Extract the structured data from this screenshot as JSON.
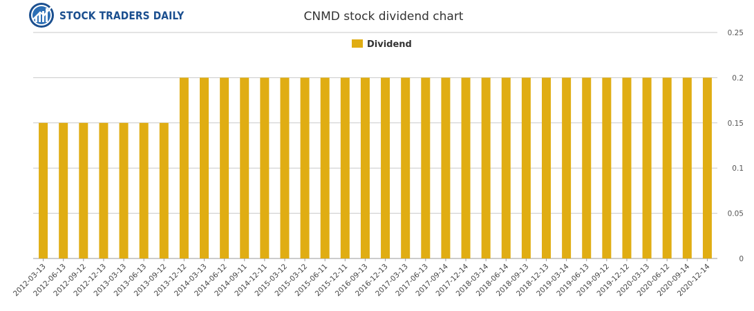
{
  "brand": {
    "name": "STOCK TRADERS DAILY",
    "logo": "globe-chart-logo"
  },
  "chart_data": {
    "type": "bar",
    "title": "CNMD stock dividend chart",
    "xlabel": "",
    "ylabel": "",
    "ylim": [
      0,
      0.25
    ],
    "yticks": [
      "0",
      "0.05",
      "0.1",
      "0.15",
      "0.2",
      "0.25"
    ],
    "grid": true,
    "legend_position": "top-center",
    "categories": [
      "2012-03-13",
      "2012-06-13",
      "2012-09-12",
      "2012-12-13",
      "2013-03-13",
      "2013-06-13",
      "2013-09-12",
      "2013-12-12",
      "2014-03-13",
      "2014-06-12",
      "2014-09-11",
      "2014-12-11",
      "2015-03-12",
      "2015-03-12",
      "2015-06-11",
      "2015-12-11",
      "2016-09-13",
      "2016-12-13",
      "2017-03-13",
      "2017-06-13",
      "2017-09-14",
      "2017-12-14",
      "2018-03-14",
      "2018-06-14",
      "2018-09-13",
      "2018-12-13",
      "2019-03-14",
      "2019-06-13",
      "2019-09-12",
      "2019-12-12",
      "2020-03-13",
      "2020-06-12",
      "2020-09-14",
      "2020-12-14"
    ],
    "series": [
      {
        "name": "Dividend",
        "color": "#e0ad13",
        "values": [
          0.15,
          0.15,
          0.15,
          0.15,
          0.15,
          0.15,
          0.15,
          0.2,
          0.2,
          0.2,
          0.2,
          0.2,
          0.2,
          0.2,
          0.2,
          0.2,
          0.2,
          0.2,
          0.2,
          0.2,
          0.2,
          0.2,
          0.2,
          0.2,
          0.2,
          0.2,
          0.2,
          0.2,
          0.2,
          0.2,
          0.2,
          0.2,
          0.2,
          0.2
        ]
      }
    ]
  }
}
